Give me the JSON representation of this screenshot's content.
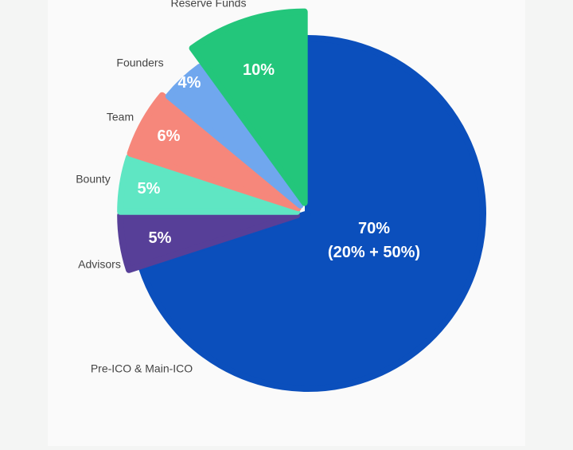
{
  "chart_data": {
    "type": "pie",
    "categories": [
      "Pre-ICO & Main-ICO",
      "Advisors",
      "Bounty",
      "Team",
      "Founders",
      "Reserve Funds"
    ],
    "values": [
      70,
      5,
      5,
      6,
      4,
      10
    ],
    "value_labels": [
      "70%\n(20% + 50%)",
      "5%",
      "5%",
      "6%",
      "4%",
      "10%"
    ],
    "colors": [
      "#0b4fbc",
      "#573f98",
      "#5fe6c3",
      "#f6877b",
      "#70a7ee",
      "#23c67b"
    ]
  }
}
